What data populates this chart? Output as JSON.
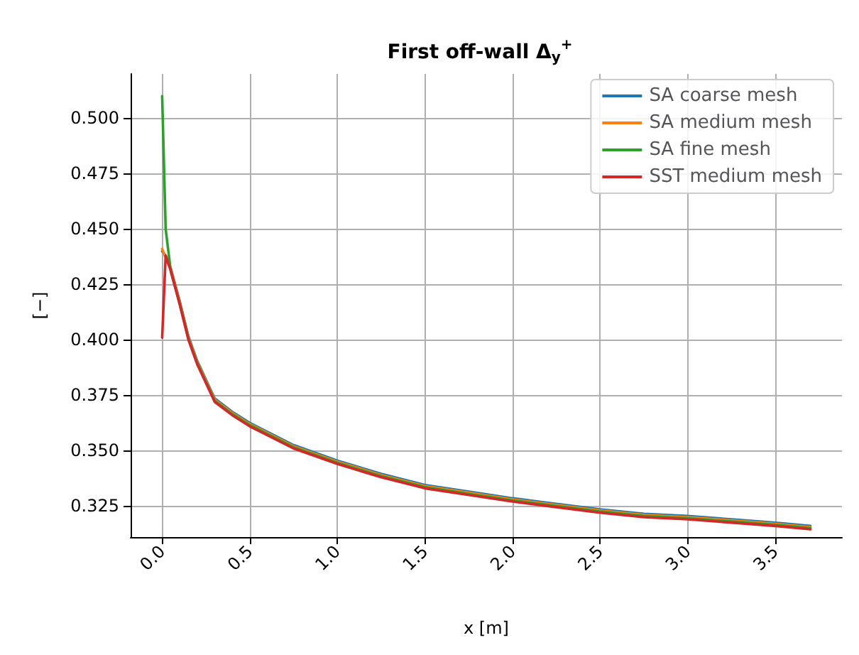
{
  "chart_data": {
    "type": "line",
    "title": "First off-wall Δ$_{y}$$^{+}$",
    "xlabel": "x [m]",
    "ylabel": "[−]",
    "xlim": [
      -0.18,
      3.88
    ],
    "ylim": [
      0.311,
      0.52
    ],
    "xticks": [
      {
        "value": 0,
        "label": "0.0"
      },
      {
        "value": 0.5,
        "label": "0.5"
      },
      {
        "value": 1,
        "label": "1.0"
      },
      {
        "value": 1.5,
        "label": "1.5"
      },
      {
        "value": 2,
        "label": "2.0"
      },
      {
        "value": 2.5,
        "label": "2.5"
      },
      {
        "value": 3,
        "label": "3.0"
      },
      {
        "value": 3.5,
        "label": "3.5"
      }
    ],
    "yticks": [
      {
        "value": 0.325,
        "label": "0.325"
      },
      {
        "value": 0.35,
        "label": "0.350"
      },
      {
        "value": 0.375,
        "label": "0.375"
      },
      {
        "value": 0.4,
        "label": "0.400"
      },
      {
        "value": 0.425,
        "label": "0.425"
      },
      {
        "value": 0.45,
        "label": "0.450"
      },
      {
        "value": 0.475,
        "label": "0.475"
      },
      {
        "value": 0.5,
        "label": "0.500"
      }
    ],
    "grid": true,
    "legend": "top right",
    "marker": "none",
    "line_style": "solid",
    "x": [
      0,
      0.02,
      0.05,
      0.1,
      0.15,
      0.2,
      0.3,
      0.4,
      0.5,
      0.75,
      1,
      1.25,
      1.5,
      1.75,
      2,
      2.25,
      2.5,
      2.75,
      3,
      3.25,
      3.5,
      3.7
    ],
    "series": [
      {
        "name": "SA coarse mesh",
        "color": "#1f77b4",
        "values": [
          0.44,
          0.438,
          0.432,
          0.4175,
          0.4015,
          0.3905,
          0.3735,
          0.3675,
          0.3625,
          0.3525,
          0.3455,
          0.3395,
          0.3345,
          0.3315,
          0.3285,
          0.326,
          0.3235,
          0.3215,
          0.3205,
          0.319,
          0.3175,
          0.316
        ]
      },
      {
        "name": "SA medium mesh",
        "color": "#ff7f0e",
        "values": [
          0.441,
          0.437,
          0.4315,
          0.417,
          0.401,
          0.39,
          0.373,
          0.367,
          0.362,
          0.352,
          0.345,
          0.339,
          0.334,
          0.331,
          0.328,
          0.3255,
          0.323,
          0.321,
          0.32,
          0.3185,
          0.317,
          0.3155
        ]
      },
      {
        "name": "SA fine mesh",
        "color": "#2ca02c",
        "values": [
          0.51,
          0.45,
          0.4305,
          0.4165,
          0.4005,
          0.3895,
          0.3725,
          0.3665,
          0.3615,
          0.3515,
          0.3445,
          0.3385,
          0.3335,
          0.3305,
          0.3275,
          0.325,
          0.3225,
          0.3205,
          0.3195,
          0.318,
          0.3165,
          0.315
        ]
      },
      {
        "name": "SST medium mesh",
        "color": "#d62728",
        "values": [
          0.401,
          0.438,
          0.431,
          0.416,
          0.4,
          0.389,
          0.372,
          0.366,
          0.361,
          0.351,
          0.344,
          0.338,
          0.333,
          0.33,
          0.327,
          0.3245,
          0.322,
          0.32,
          0.319,
          0.3175,
          0.316,
          0.3145
        ]
      }
    ]
  }
}
